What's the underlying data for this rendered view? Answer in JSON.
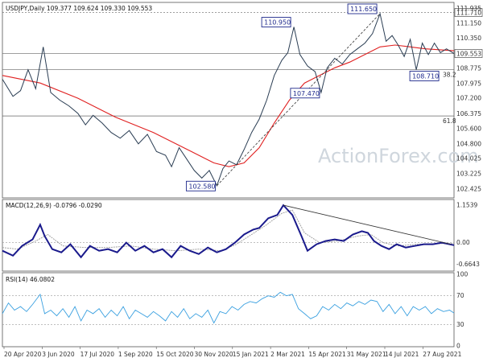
{
  "chart_data": [
    {
      "type": "candlestick",
      "title": "USDJPY,Daily 109.377 109.624 109.330 109.553",
      "ylim": [
        102.0,
        112.2
      ],
      "y_ticks": [
        "111.935",
        "111.150",
        "110.350",
        "109.553",
        "108.775",
        "107.975",
        "107.200",
        "106.375",
        "105.600",
        "104.800",
        "104.025",
        "103.225",
        "102.425"
      ],
      "x_ticks": [
        "20 Apr 2020",
        "3 Jun 2020",
        "17 Jul 2020",
        "1 Sep 2020",
        "15 Oct 2020",
        "30 Nov 2020",
        "15 Jan 2021",
        "2 Mar 2021",
        "15 Apr 2021",
        "31 May 2021",
        "14 Jul 2021",
        "27 Aug 2021"
      ],
      "last_price": 109.553,
      "last_price_label": "109.553",
      "price_path": [
        [
          0,
          108.2
        ],
        [
          7,
          107.3
        ],
        [
          12,
          107.6
        ],
        [
          17,
          108.7
        ],
        [
          22,
          107.7
        ],
        [
          27,
          109.9
        ],
        [
          32,
          107.5
        ],
        [
          38,
          107.1
        ],
        [
          44,
          106.8
        ],
        [
          50,
          106.4
        ],
        [
          55,
          105.8
        ],
        [
          60,
          106.3
        ],
        [
          66,
          105.9
        ],
        [
          72,
          105.4
        ],
        [
          78,
          105.1
        ],
        [
          84,
          105.5
        ],
        [
          90,
          104.8
        ],
        [
          96,
          105.3
        ],
        [
          102,
          104.4
        ],
        [
          108,
          104.2
        ],
        [
          112,
          103.6
        ],
        [
          117,
          104.6
        ],
        [
          122,
          104.0
        ],
        [
          127,
          103.4
        ],
        [
          132,
          103.0
        ],
        [
          137,
          103.4
        ],
        [
          142,
          102.6
        ],
        [
          146,
          103.5
        ],
        [
          150,
          103.9
        ],
        [
          155,
          103.7
        ],
        [
          160,
          104.5
        ],
        [
          165,
          105.4
        ],
        [
          170,
          106.1
        ],
        [
          175,
          107.1
        ],
        [
          180,
          108.4
        ],
        [
          185,
          109.2
        ],
        [
          189,
          109.6
        ],
        [
          193,
          110.95
        ],
        [
          197,
          109.5
        ],
        [
          202,
          108.9
        ],
        [
          207,
          108.6
        ],
        [
          211,
          107.5
        ],
        [
          215,
          108.8
        ],
        [
          220,
          109.3
        ],
        [
          225,
          109.0
        ],
        [
          230,
          109.5
        ],
        [
          235,
          109.8
        ],
        [
          240,
          110.1
        ],
        [
          245,
          110.6
        ],
        [
          250,
          111.65
        ],
        [
          254,
          110.2
        ],
        [
          258,
          110.5
        ],
        [
          262,
          110.0
        ],
        [
          266,
          109.4
        ],
        [
          270,
          110.3
        ],
        [
          274,
          108.7
        ],
        [
          278,
          110.1
        ],
        [
          282,
          109.5
        ],
        [
          286,
          110.1
        ],
        [
          290,
          109.6
        ],
        [
          294,
          109.8
        ],
        [
          299,
          109.55
        ]
      ],
      "moving_average": [
        [
          0,
          108.4
        ],
        [
          25,
          108.0
        ],
        [
          50,
          107.2
        ],
        [
          75,
          106.2
        ],
        [
          100,
          105.4
        ],
        [
          125,
          104.4
        ],
        [
          140,
          103.8
        ],
        [
          150,
          103.6
        ],
        [
          160,
          103.8
        ],
        [
          170,
          104.6
        ],
        [
          180,
          105.9
        ],
        [
          190,
          107.1
        ],
        [
          200,
          108.0
        ],
        [
          210,
          108.4
        ],
        [
          220,
          108.8
        ],
        [
          230,
          109.1
        ],
        [
          240,
          109.5
        ],
        [
          250,
          109.9
        ],
        [
          260,
          110.0
        ],
        [
          270,
          109.9
        ],
        [
          280,
          109.8
        ],
        [
          299,
          109.7
        ]
      ],
      "horizontal_levels": [
        {
          "value": 111.71,
          "label": "111.710",
          "style": "dotted"
        },
        {
          "value": 109.553,
          "label": "109.553",
          "style": "solid"
        },
        {
          "value": 108.7,
          "label": "38.2",
          "style": "solid"
        },
        {
          "value": 106.27,
          "label": "61.8",
          "style": "solid"
        }
      ],
      "trendline": [
        [
          142,
          102.6
        ],
        [
          250,
          111.65
        ]
      ],
      "annotations": [
        {
          "x": 193,
          "value": 110.95,
          "label": "110.950"
        },
        {
          "x": 250,
          "value": 111.65,
          "label": "111.650"
        },
        {
          "x": 142,
          "value": 102.58,
          "label": "102.580"
        },
        {
          "x": 211,
          "value": 107.47,
          "label": "107.470"
        },
        {
          "x": 274,
          "value": 108.71,
          "label": "108.710"
        }
      ],
      "watermark": "ActionForex.com"
    },
    {
      "type": "line",
      "title": "MACD(12,26,9) -0.0796 -0.0290",
      "ylim": [
        -0.85,
        1.3
      ],
      "y_ticks": [
        "1.1539",
        "0.00",
        "-0.6643"
      ],
      "series": [
        {
          "values": [
            [
              0,
              -0.25
            ],
            [
              7,
              -0.4
            ],
            [
              13,
              -0.1
            ],
            [
              20,
              0.1
            ],
            [
              25,
              0.55
            ],
            [
              28,
              0.2
            ],
            [
              33,
              -0.2
            ],
            [
              39,
              -0.3
            ],
            [
              45,
              -0.05
            ],
            [
              52,
              -0.45
            ],
            [
              58,
              -0.1
            ],
            [
              64,
              -0.25
            ],
            [
              70,
              -0.2
            ],
            [
              76,
              -0.3
            ],
            [
              82,
              0.0
            ],
            [
              88,
              -0.25
            ],
            [
              94,
              -0.1
            ],
            [
              100,
              -0.3
            ],
            [
              106,
              -0.2
            ],
            [
              112,
              -0.45
            ],
            [
              118,
              -0.1
            ],
            [
              124,
              -0.25
            ],
            [
              130,
              -0.35
            ],
            [
              136,
              -0.15
            ],
            [
              142,
              -0.3
            ],
            [
              148,
              -0.2
            ],
            [
              154,
              0.0
            ],
            [
              160,
              0.25
            ],
            [
              166,
              0.4
            ],
            [
              170,
              0.45
            ],
            [
              176,
              0.75
            ],
            [
              182,
              0.85
            ],
            [
              186,
              1.15
            ],
            [
              192,
              0.85
            ],
            [
              198,
              0.2
            ],
            [
              202,
              -0.25
            ],
            [
              208,
              -0.05
            ],
            [
              214,
              0.05
            ],
            [
              220,
              0.1
            ],
            [
              226,
              0.05
            ],
            [
              232,
              0.25
            ],
            [
              238,
              0.35
            ],
            [
              242,
              0.3
            ],
            [
              246,
              0.05
            ],
            [
              251,
              -0.1
            ],
            [
              256,
              -0.2
            ],
            [
              261,
              -0.05
            ],
            [
              267,
              -0.15
            ],
            [
              273,
              -0.1
            ],
            [
              279,
              -0.05
            ],
            [
              285,
              -0.05
            ],
            [
              291,
              0.0
            ],
            [
              299,
              -0.08
            ]
          ]
        },
        {
          "values": [
            [
              0,
              -0.15
            ],
            [
              10,
              -0.2
            ],
            [
              22,
              0.05
            ],
            [
              30,
              0.25
            ],
            [
              40,
              -0.1
            ],
            [
              55,
              -0.15
            ],
            [
              70,
              -0.15
            ],
            [
              85,
              -0.1
            ],
            [
              100,
              -0.2
            ],
            [
              115,
              -0.25
            ],
            [
              130,
              -0.2
            ],
            [
              145,
              -0.25
            ],
            [
              155,
              -0.05
            ],
            [
              165,
              0.25
            ],
            [
              175,
              0.55
            ],
            [
              185,
              0.9
            ],
            [
              192,
              1.0
            ],
            [
              200,
              0.3
            ],
            [
              210,
              0.0
            ],
            [
              222,
              0.05
            ],
            [
              235,
              0.2
            ],
            [
              244,
              0.25
            ],
            [
              252,
              0.0
            ],
            [
              262,
              -0.1
            ],
            [
              275,
              -0.05
            ],
            [
              290,
              -0.03
            ],
            [
              299,
              -0.03
            ]
          ]
        }
      ],
      "zero_line": 0,
      "trendline": [
        [
          186,
          1.15
        ],
        [
          297,
          -0.05
        ]
      ]
    },
    {
      "type": "line",
      "title": "RSI(14) 46.0802",
      "ylim": [
        0,
        100
      ],
      "y_ticks": [
        "100",
        "70",
        "30",
        "0"
      ],
      "levels": [
        70,
        30
      ],
      "series": [
        {
          "values": [
            [
              0,
              45
            ],
            [
              4,
              60
            ],
            [
              8,
              50
            ],
            [
              12,
              55
            ],
            [
              16,
              48
            ],
            [
              20,
              58
            ],
            [
              25,
              72
            ],
            [
              28,
              45
            ],
            [
              32,
              50
            ],
            [
              36,
              42
            ],
            [
              40,
              52
            ],
            [
              44,
              40
            ],
            [
              48,
              55
            ],
            [
              52,
              35
            ],
            [
              56,
              50
            ],
            [
              60,
              45
            ],
            [
              64,
              52
            ],
            [
              68,
              40
            ],
            [
              72,
              50
            ],
            [
              76,
              42
            ],
            [
              80,
              55
            ],
            [
              84,
              38
            ],
            [
              88,
              50
            ],
            [
              92,
              45
            ],
            [
              96,
              40
            ],
            [
              100,
              48
            ],
            [
              104,
              42
            ],
            [
              108,
              35
            ],
            [
              112,
              48
            ],
            [
              116,
              40
            ],
            [
              120,
              52
            ],
            [
              124,
              38
            ],
            [
              128,
              45
            ],
            [
              132,
              40
            ],
            [
              136,
              50
            ],
            [
              140,
              32
            ],
            [
              144,
              48
            ],
            [
              148,
              45
            ],
            [
              152,
              55
            ],
            [
              156,
              50
            ],
            [
              160,
              58
            ],
            [
              164,
              62
            ],
            [
              168,
              60
            ],
            [
              172,
              66
            ],
            [
              176,
              70
            ],
            [
              180,
              68
            ],
            [
              184,
              75
            ],
            [
              188,
              70
            ],
            [
              192,
              72
            ],
            [
              196,
              52
            ],
            [
              200,
              45
            ],
            [
              204,
              38
            ],
            [
              208,
              42
            ],
            [
              212,
              55
            ],
            [
              216,
              50
            ],
            [
              220,
              58
            ],
            [
              224,
              52
            ],
            [
              228,
              60
            ],
            [
              232,
              56
            ],
            [
              236,
              62
            ],
            [
              240,
              58
            ],
            [
              244,
              64
            ],
            [
              248,
              62
            ],
            [
              252,
              48
            ],
            [
              256,
              58
            ],
            [
              260,
              45
            ],
            [
              264,
              55
            ],
            [
              268,
              42
            ],
            [
              272,
              55
            ],
            [
              276,
              50
            ],
            [
              280,
              55
            ],
            [
              284,
              45
            ],
            [
              288,
              52
            ],
            [
              292,
              48
            ],
            [
              296,
              50
            ],
            [
              299,
              46
            ]
          ]
        }
      ]
    }
  ]
}
